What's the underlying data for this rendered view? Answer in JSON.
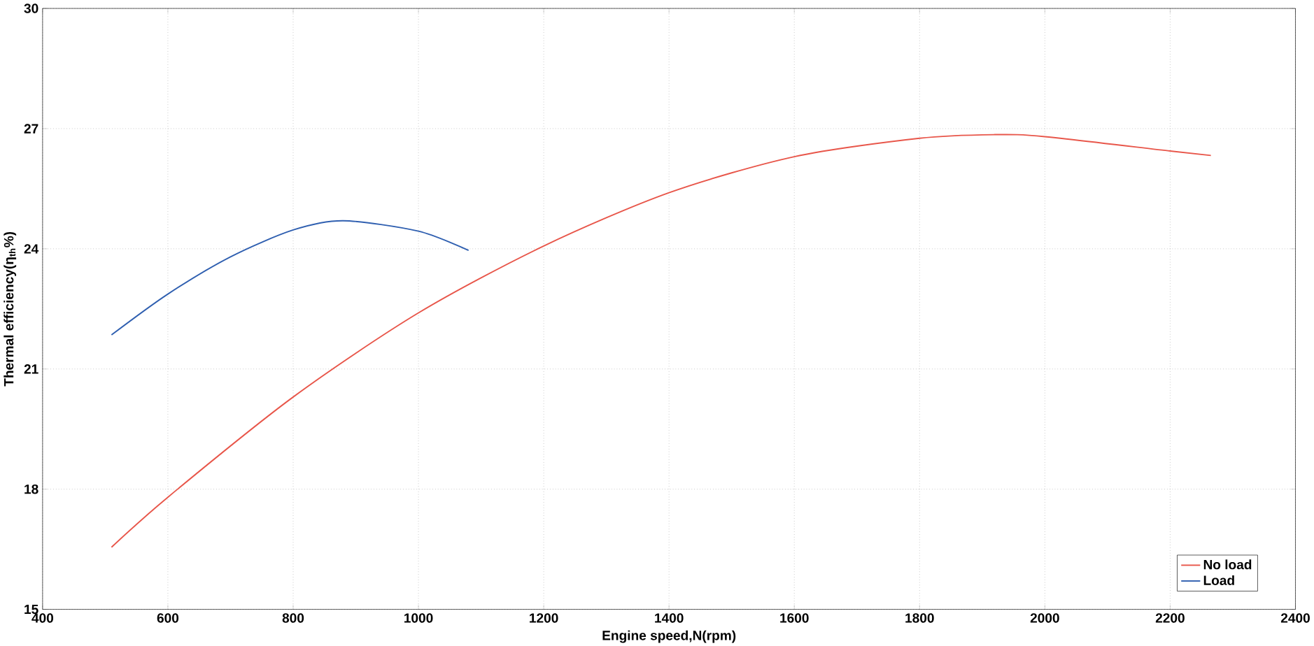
{
  "chart_data": {
    "type": "line",
    "xlabel": "Engine speed,N(rpm)",
    "ylabel": "Thermal efficiency(η$_{th}$%)",
    "xlim": [
      400,
      2400
    ],
    "ylim": [
      15,
      30
    ],
    "xticks": [
      400,
      600,
      800,
      1000,
      1200,
      1400,
      1600,
      1800,
      2000,
      2200,
      2400
    ],
    "yticks": [
      15,
      18,
      21,
      24,
      27,
      30
    ],
    "grid": true,
    "legend": "bottom right",
    "line_style": "solid",
    "marker": "none",
    "series": [
      {
        "name": "No load",
        "color": "#e8564a",
        "x": [
          510,
          600,
          800,
          1000,
          1200,
          1400,
          1600,
          1800,
          1920,
          2000,
          2200,
          2265
        ],
        "values": [
          16.55,
          17.8,
          20.3,
          22.4,
          24.07,
          25.4,
          26.3,
          26.76,
          26.85,
          26.8,
          26.44,
          26.33
        ]
      },
      {
        "name": "Load",
        "color": "#2f5fb0",
        "x": [
          510,
          600,
          700,
          800,
          880,
          1000,
          1080
        ],
        "values": [
          21.85,
          22.87,
          23.8,
          24.47,
          24.7,
          24.44,
          23.96
        ]
      }
    ]
  }
}
